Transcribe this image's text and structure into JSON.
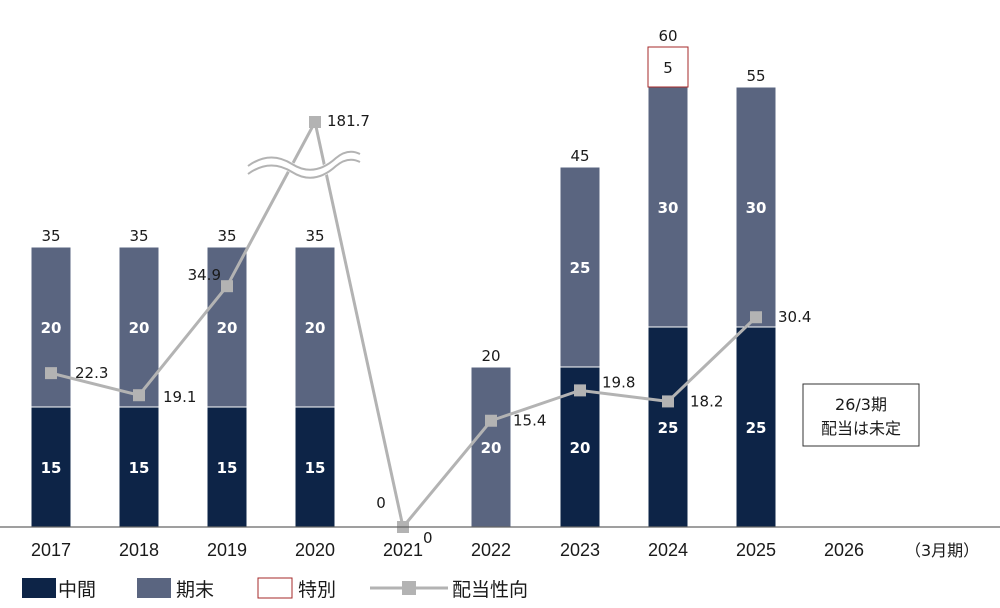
{
  "chart_data": {
    "type": "bar",
    "categories": [
      "2017",
      "2018",
      "2019",
      "2020",
      "2021",
      "2022",
      "2023",
      "2024",
      "2025",
      "2026"
    ],
    "series": [
      {
        "name": "中間",
        "values": [
          15,
          15,
          15,
          15,
          0,
          0,
          20,
          25,
          25,
          null
        ],
        "color": "#0d2447"
      },
      {
        "name": "期末",
        "values": [
          20,
          20,
          20,
          20,
          0,
          20,
          25,
          30,
          30,
          null
        ],
        "color": "#5a6580"
      },
      {
        "name": "特別",
        "values": [
          0,
          0,
          0,
          0,
          0,
          0,
          0,
          5,
          0,
          null
        ],
        "color": "#ffffff",
        "border": "#a52a2a"
      }
    ],
    "totals": [
      35,
      35,
      35,
      35,
      0,
      20,
      45,
      60,
      55,
      null
    ],
    "line_series": {
      "name": "配当性向",
      "values": [
        22.3,
        19.1,
        34.9,
        181.7,
        0,
        15.4,
        19.8,
        18.2,
        30.4,
        null
      ],
      "color": "#b3b3b3"
    },
    "axis_break": true,
    "x_unit": "（3月期）",
    "ylim": [
      0,
      60
    ],
    "legend_position": "bottom-left",
    "note": {
      "line1": "26/3期",
      "line2": "配当は未定"
    }
  }
}
